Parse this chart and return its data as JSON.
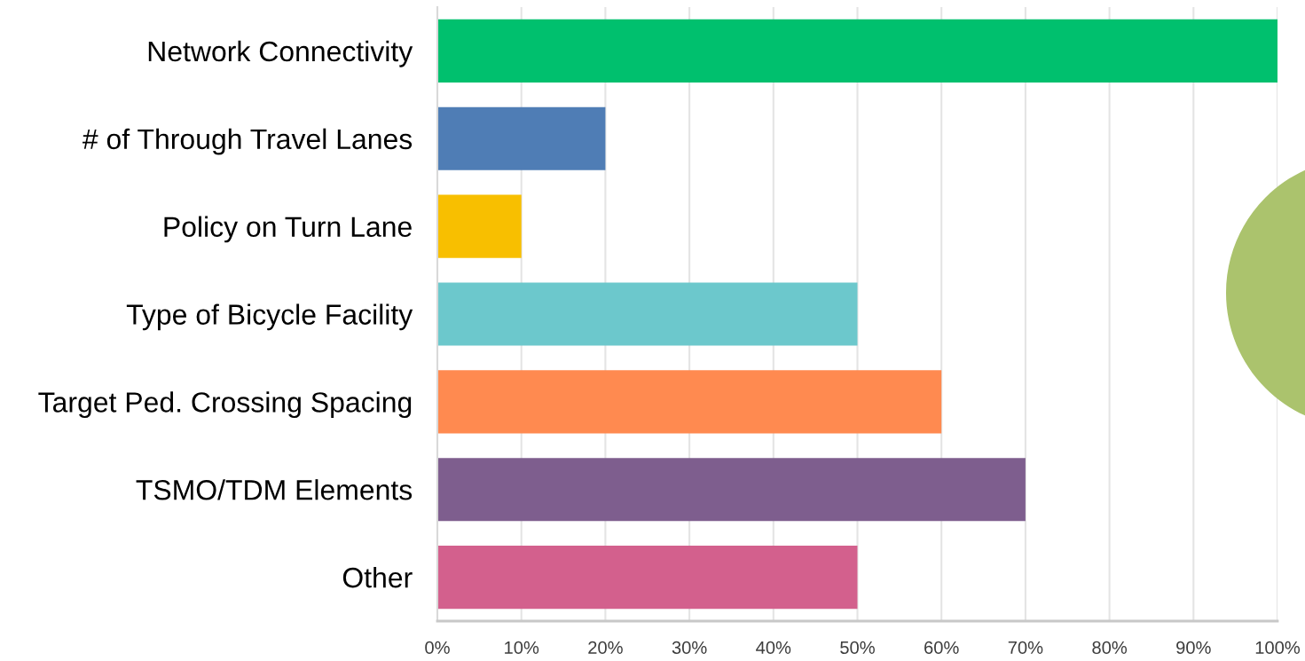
{
  "chart_data": {
    "type": "bar",
    "orientation": "horizontal",
    "categories": [
      "Network Connectivity",
      "# of Through Travel Lanes",
      "Policy on Turn Lane",
      "Type of Bicycle Facility",
      "Target Ped. Crossing Spacing",
      "TSMO/TDM Elements",
      "Other"
    ],
    "values": [
      100,
      20,
      10,
      50,
      60,
      70,
      50
    ],
    "colors": [
      "#00c06e",
      "#4f7db5",
      "#f8bf00",
      "#6cc8cc",
      "#ff8a50",
      "#7e5e8e",
      "#d3608d"
    ],
    "xlim": [
      0,
      100
    ],
    "xticks": [
      {
        "value": 0,
        "label": "0%"
      },
      {
        "value": 10,
        "label": "10%"
      },
      {
        "value": 20,
        "label": "20%"
      },
      {
        "value": 30,
        "label": "30%"
      },
      {
        "value": 40,
        "label": "40%"
      },
      {
        "value": 50,
        "label": "50%"
      },
      {
        "value": 60,
        "label": "60%"
      },
      {
        "value": 70,
        "label": "70%"
      },
      {
        "value": 80,
        "label": "80%"
      },
      {
        "value": 90,
        "label": "90%"
      },
      {
        "value": 100,
        "label": "100%"
      }
    ],
    "grid": "x",
    "legend": false
  }
}
